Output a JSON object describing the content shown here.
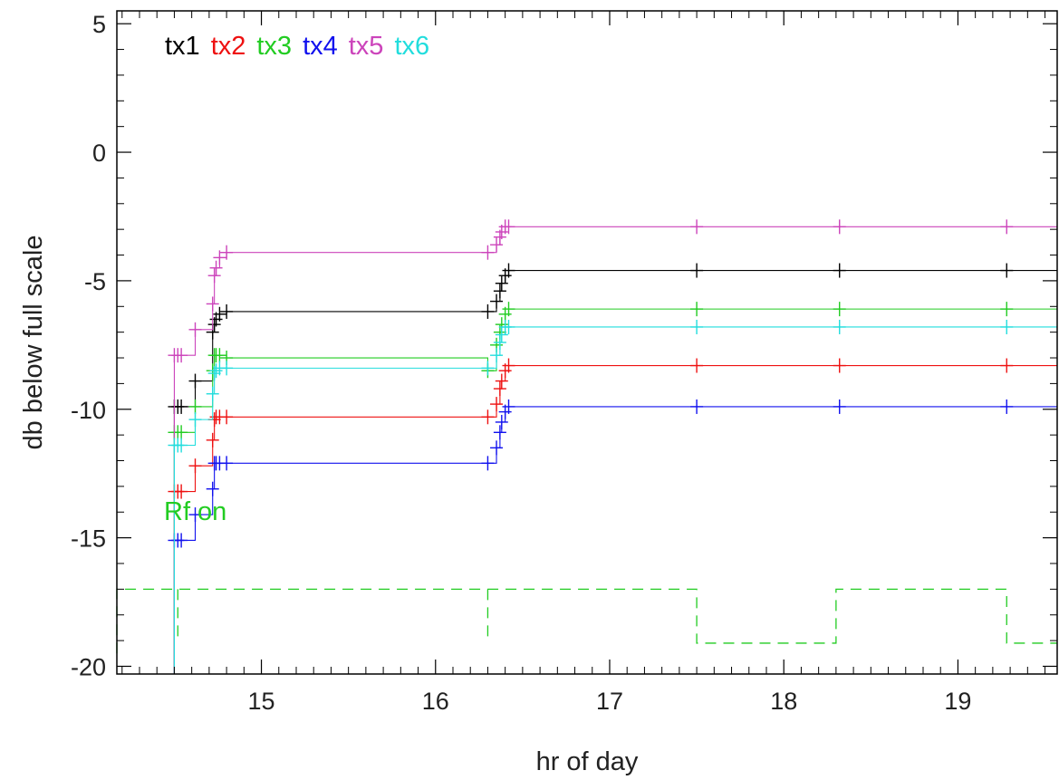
{
  "chart_data": {
    "type": "line",
    "title": "",
    "xlabel": "hr of day",
    "ylabel": "db below full scale",
    "xlim": [
      14.17,
      19.57
    ],
    "ylim": [
      -20.3,
      5.5
    ],
    "xticks": [
      15,
      16,
      17,
      18,
      19
    ],
    "xtick_labels": [
      "15",
      "16",
      "17",
      "18",
      "19"
    ],
    "yticks": [
      5,
      0,
      -5,
      -10,
      -15,
      -20
    ],
    "ytick_labels": [
      "5",
      "0",
      "-5",
      "-10",
      "-15",
      "-20"
    ],
    "grid": false,
    "legend_position": "top-left",
    "annotation": {
      "text": "Rf on",
      "x": 14.17,
      "y": -14.1,
      "color": "#22cc22"
    },
    "series": [
      {
        "name": "tx1",
        "color": "#000000",
        "x": [
          14.5,
          14.52,
          14.54,
          14.62,
          14.72,
          14.73,
          14.74,
          14.76,
          14.8,
          16.3,
          16.35,
          16.37,
          16.38,
          16.4,
          16.42,
          17.5,
          18.32,
          19.28
        ],
        "y": [
          -9.9,
          -9.9,
          -9.9,
          -8.9,
          -7.0,
          -6.7,
          -6.5,
          -6.3,
          -6.2,
          -6.2,
          -5.8,
          -5.4,
          -5.1,
          -4.8,
          -4.6,
          -4.6,
          -4.6,
          -4.6
        ]
      },
      {
        "name": "tx2",
        "color": "#ee1111",
        "x": [
          14.5,
          14.52,
          14.54,
          14.62,
          14.72,
          14.73,
          14.74,
          14.76,
          14.8,
          16.3,
          16.35,
          16.37,
          16.38,
          16.4,
          16.42,
          17.5,
          18.32,
          19.28
        ],
        "y": [
          -13.2,
          -13.2,
          -13.2,
          -12.2,
          -11.2,
          -10.4,
          -10.3,
          -10.3,
          -10.3,
          -10.3,
          -9.8,
          -9.2,
          -8.9,
          -8.5,
          -8.3,
          -8.3,
          -8.3,
          -8.3
        ]
      },
      {
        "name": "tx3",
        "color": "#22cc22",
        "x": [
          14.5,
          14.52,
          14.54,
          14.62,
          14.72,
          14.73,
          14.74,
          14.76,
          14.8,
          16.3,
          16.35,
          16.37,
          16.38,
          16.4,
          16.42,
          17.5,
          18.32,
          19.28
        ],
        "y": [
          -10.9,
          -10.9,
          -10.9,
          -9.9,
          -8.5,
          -7.9,
          -7.9,
          -7.9,
          -8.0,
          -8.5,
          -7.5,
          -7.0,
          -6.7,
          -6.3,
          -6.1,
          -6.1,
          -6.1,
          -6.1
        ]
      },
      {
        "name": "tx4",
        "color": "#1111ee",
        "x": [
          14.5,
          14.52,
          14.54,
          14.62,
          14.72,
          14.73,
          14.74,
          14.76,
          14.8,
          16.3,
          16.35,
          16.37,
          16.38,
          16.4,
          16.42,
          17.5,
          18.32,
          19.28
        ],
        "y": [
          -15.1,
          -15.1,
          -15.1,
          -14.1,
          -13.1,
          -12.1,
          -12.1,
          -12.1,
          -12.1,
          -12.1,
          -11.5,
          -10.9,
          -10.5,
          -10.1,
          -9.9,
          -9.9,
          -9.9,
          -9.9
        ]
      },
      {
        "name": "tx5",
        "color": "#cc44bb",
        "x": [
          14.5,
          14.52,
          14.54,
          14.62,
          14.72,
          14.73,
          14.74,
          14.76,
          14.8,
          16.3,
          16.35,
          16.37,
          16.38,
          16.4,
          16.42,
          17.5,
          18.32,
          19.28
        ],
        "y": [
          -7.9,
          -7.9,
          -7.9,
          -6.9,
          -5.9,
          -4.8,
          -4.5,
          -4.1,
          -3.9,
          -3.9,
          -3.6,
          -3.3,
          -3.1,
          -2.9,
          -2.9,
          -2.9,
          -2.9,
          -2.9
        ]
      },
      {
        "name": "tx6",
        "color": "#22dddd",
        "x": [
          14.5,
          14.52,
          14.54,
          14.62,
          14.72,
          14.73,
          14.74,
          14.76,
          14.8,
          16.3,
          16.35,
          16.37,
          16.38,
          16.4,
          16.42,
          17.5,
          18.32,
          19.28
        ],
        "y": [
          -11.4,
          -11.4,
          -11.4,
          -10.4,
          -9.4,
          -8.6,
          -8.5,
          -8.4,
          -8.4,
          -8.4,
          -7.9,
          -7.4,
          -7.1,
          -6.8,
          -6.8,
          -6.8,
          -6.8,
          -6.8
        ]
      }
    ],
    "rf_on": {
      "color": "#22cc22",
      "style": "dashed",
      "x": [
        14.17,
        14.5,
        14.55,
        16.3,
        16.31,
        17.5,
        18.3,
        19.28
      ],
      "y": [
        -17.0,
        -17.0,
        -17.0,
        -17.0,
        -17.0,
        -19.1,
        -17.0,
        -19.1
      ],
      "dips": [
        {
          "x": 14.52,
          "y": -19.1
        },
        {
          "x": 16.3,
          "y": -19.1
        }
      ]
    }
  }
}
